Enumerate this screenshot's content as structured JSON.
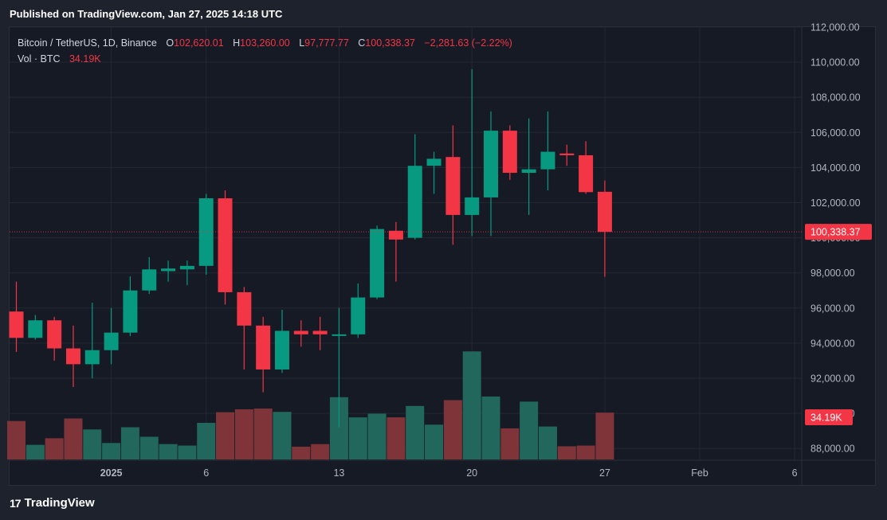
{
  "published": "Published on TradingView.com, Jan 27, 2025 14:18 UTC",
  "legend": {
    "symbol": "Bitcoin / TetherUS, 1D, Binance",
    "o_label": "O",
    "o_value": "102,620.01",
    "h_label": "H",
    "h_value": "103,260.00",
    "l_label": "L",
    "l_value": "97,777.77",
    "c_label": "C",
    "c_value": "100,338.37",
    "change": "−2,281.63 (−2.22%)",
    "vol_label": "Vol · BTC",
    "vol_value": "34.19K"
  },
  "branding": {
    "logo_mark": "17",
    "logo_text": "TradingView"
  },
  "colors": {
    "up": "#089981",
    "down": "#f23645",
    "vol_up": "#22675c",
    "vol_down": "#7e3439",
    "background": "#161a25"
  },
  "chart_data": {
    "type": "candlestick",
    "interval": "1D",
    "price_axis": {
      "ticks": [
        88000,
        90000,
        92000,
        94000,
        96000,
        98000,
        100000,
        102000,
        104000,
        106000,
        108000,
        110000,
        112000
      ],
      "range": [
        87000,
        112000
      ]
    },
    "last_price": {
      "value": 100338.37,
      "label": "100,338.37"
    },
    "volume_label": "34.19K",
    "time_axis": [
      {
        "label": "2025",
        "day": 5
      },
      {
        "label": "6",
        "day": 10
      },
      {
        "label": "13",
        "day": 17
      },
      {
        "label": "20",
        "day": 24
      },
      {
        "label": "27",
        "day": 31
      },
      {
        "label": "Feb",
        "day": 36
      },
      {
        "label": "6",
        "day": 41
      }
    ],
    "candles": [
      {
        "day": 0,
        "open": 95800,
        "high": 97500,
        "low": 93500,
        "close": 94300,
        "volume": 1.05
      },
      {
        "day": 1,
        "open": 94300,
        "high": 95600,
        "low": 94200,
        "close": 95300,
        "volume": 0.4
      },
      {
        "day": 2,
        "open": 95300,
        "high": 95500,
        "low": 93000,
        "close": 93700,
        "volume": 0.58
      },
      {
        "day": 3,
        "open": 93700,
        "high": 95000,
        "low": 91500,
        "close": 92800,
        "volume": 1.12
      },
      {
        "day": 4,
        "open": 92800,
        "high": 96300,
        "low": 92000,
        "close": 93600,
        "volume": 0.82
      },
      {
        "day": 5,
        "open": 93600,
        "high": 96000,
        "low": 92800,
        "close": 94600,
        "volume": 0.45
      },
      {
        "day": 6,
        "open": 94600,
        "high": 97800,
        "low": 94400,
        "close": 97000,
        "volume": 0.88
      },
      {
        "day": 7,
        "open": 97000,
        "high": 98900,
        "low": 96800,
        "close": 98200,
        "volume": 0.62
      },
      {
        "day": 8,
        "open": 98100,
        "high": 98700,
        "low": 97500,
        "close": 98250,
        "volume": 0.42
      },
      {
        "day": 9,
        "open": 98200,
        "high": 98700,
        "low": 97300,
        "close": 98400,
        "volume": 0.38
      },
      {
        "day": 10,
        "open": 98400,
        "high": 102500,
        "low": 97900,
        "close": 102250,
        "volume": 1.0
      },
      {
        "day": 11,
        "open": 102250,
        "high": 102700,
        "low": 96200,
        "close": 96900,
        "volume": 1.29
      },
      {
        "day": 12,
        "open": 96900,
        "high": 97200,
        "low": 92500,
        "close": 95000,
        "volume": 1.37
      },
      {
        "day": 13,
        "open": 95000,
        "high": 95500,
        "low": 91200,
        "close": 92500,
        "volume": 1.39
      },
      {
        "day": 14,
        "open": 92500,
        "high": 95900,
        "low": 92300,
        "close": 94700,
        "volume": 1.3
      },
      {
        "day": 15,
        "open": 94700,
        "high": 95300,
        "low": 93800,
        "close": 94500,
        "volume": 0.35
      },
      {
        "day": 16,
        "open": 94700,
        "high": 95500,
        "low": 93600,
        "close": 94500,
        "volume": 0.42
      },
      {
        "day": 17,
        "open": 94500,
        "high": 96000,
        "low": 89200,
        "close": 94500,
        "volume": 1.7
      },
      {
        "day": 18,
        "open": 94500,
        "high": 97400,
        "low": 94300,
        "close": 96600,
        "volume": 1.15
      },
      {
        "day": 19,
        "open": 96600,
        "high": 100700,
        "low": 96500,
        "close": 100500,
        "volume": 1.25
      },
      {
        "day": 20,
        "open": 100400,
        "high": 100900,
        "low": 97500,
        "close": 99900,
        "volume": 1.15
      },
      {
        "day": 21,
        "open": 100000,
        "high": 105900,
        "low": 99900,
        "close": 104100,
        "volume": 1.46
      },
      {
        "day": 22,
        "open": 104100,
        "high": 104900,
        "low": 102500,
        "close": 104500,
        "volume": 0.95
      },
      {
        "day": 23,
        "open": 104600,
        "high": 106400,
        "low": 99600,
        "close": 101300,
        "volume": 1.62
      },
      {
        "day": 24,
        "open": 101300,
        "high": 109600,
        "low": 100100,
        "close": 102300,
        "volume": 2.95
      },
      {
        "day": 25,
        "open": 102300,
        "high": 107200,
        "low": 100100,
        "close": 106100,
        "volume": 1.72
      },
      {
        "day": 26,
        "open": 106100,
        "high": 106400,
        "low": 103300,
        "close": 103700,
        "volume": 0.85
      },
      {
        "day": 27,
        "open": 103700,
        "high": 106800,
        "low": 101300,
        "close": 103900,
        "volume": 1.58
      },
      {
        "day": 28,
        "open": 103900,
        "high": 107200,
        "low": 102700,
        "close": 104900,
        "volume": 0.9
      },
      {
        "day": 29,
        "open": 104800,
        "high": 105300,
        "low": 104100,
        "close": 104700,
        "volume": 0.36
      },
      {
        "day": 30,
        "open": 104700,
        "high": 105500,
        "low": 102500,
        "close": 102600,
        "volume": 0.38
      },
      {
        "day": 31,
        "open": 102620.01,
        "high": 103260,
        "low": 97777.77,
        "close": 100338.37,
        "volume": 1.28
      }
    ]
  }
}
